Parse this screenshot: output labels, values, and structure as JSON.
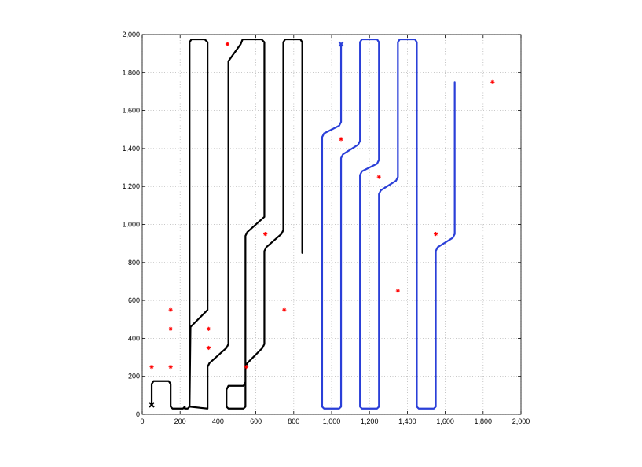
{
  "chart_data": {
    "type": "line",
    "title": "",
    "xlabel": "",
    "ylabel": "",
    "xlim": [
      0,
      2000
    ],
    "ylim": [
      0,
      2000
    ],
    "grid": true,
    "x_ticks": [
      0,
      200,
      400,
      600,
      800,
      1000,
      1200,
      1400,
      1600,
      1800,
      2000
    ],
    "y_ticks": [
      0,
      200,
      400,
      600,
      800,
      1000,
      1200,
      1400,
      1600,
      1800,
      2000
    ],
    "x_tick_labels": [
      "0",
      "200",
      "400",
      "600",
      "800",
      "1,000",
      "1,200",
      "1,400",
      "1,600",
      "1,800",
      "2,000"
    ],
    "y_tick_labels": [
      "0",
      "200",
      "400",
      "600",
      "800",
      "1,000",
      "1,200",
      "1,400",
      "1,600",
      "1,800",
      "2,000"
    ],
    "colors": {
      "black_path": "#000000",
      "blue_path": "#2a3fd8",
      "targets": "#ff0000"
    },
    "series": [
      {
        "color": "black",
        "start_marker": [
          50,
          50
        ],
        "points": [
          [
            50,
            50
          ],
          [
            50,
            160
          ],
          [
            60,
            175
          ],
          [
            140,
            175
          ],
          [
            150,
            160
          ],
          [
            150,
            40
          ],
          [
            160,
            30
          ],
          [
            215,
            30
          ],
          [
            225,
            40
          ],
          [
            225,
            40
          ],
          [
            225,
            30
          ],
          [
            240,
            30
          ],
          [
            250,
            40
          ],
          [
            250,
            1960
          ],
          [
            260,
            1975
          ],
          [
            330,
            1975
          ],
          [
            345,
            1960
          ],
          [
            345,
            550
          ],
          [
            255,
            460
          ],
          [
            250,
            40
          ],
          [
            250,
            40
          ],
          [
            345,
            30
          ],
          [
            345,
            250
          ],
          [
            355,
            270
          ],
          [
            445,
            350
          ],
          [
            455,
            370
          ],
          [
            455,
            1860
          ],
          [
            520,
            1950
          ],
          [
            530,
            1975
          ],
          [
            630,
            1975
          ],
          [
            645,
            1960
          ],
          [
            645,
            1040
          ],
          [
            555,
            960
          ],
          [
            545,
            940
          ],
          [
            545,
            170
          ],
          [
            535,
            150
          ],
          [
            455,
            150
          ],
          [
            445,
            130
          ],
          [
            445,
            40
          ],
          [
            455,
            30
          ],
          [
            535,
            30
          ],
          [
            545,
            40
          ],
          [
            545,
            250
          ],
          [
            555,
            270
          ],
          [
            635,
            350
          ],
          [
            645,
            370
          ],
          [
            645,
            860
          ],
          [
            655,
            880
          ],
          [
            735,
            950
          ],
          [
            745,
            970
          ],
          [
            745,
            1960
          ],
          [
            755,
            1975
          ],
          [
            835,
            1975
          ],
          [
            845,
            1960
          ],
          [
            845,
            850
          ]
        ]
      },
      {
        "color": "blue",
        "end_marker": [
          1050,
          1950
        ],
        "points": [
          [
            1050,
            1950
          ],
          [
            1050,
            1540
          ],
          [
            1040,
            1520
          ],
          [
            960,
            1480
          ],
          [
            950,
            1460
          ],
          [
            950,
            40
          ],
          [
            960,
            30
          ],
          [
            1040,
            30
          ],
          [
            1050,
            40
          ],
          [
            1050,
            1350
          ],
          [
            1060,
            1370
          ],
          [
            1140,
            1420
          ],
          [
            1150,
            1440
          ],
          [
            1150,
            1960
          ],
          [
            1160,
            1975
          ],
          [
            1240,
            1975
          ],
          [
            1250,
            1960
          ],
          [
            1250,
            1340
          ],
          [
            1240,
            1320
          ],
          [
            1160,
            1280
          ],
          [
            1150,
            1260
          ],
          [
            1150,
            40
          ],
          [
            1160,
            30
          ],
          [
            1240,
            30
          ],
          [
            1250,
            40
          ],
          [
            1250,
            1160
          ],
          [
            1260,
            1180
          ],
          [
            1340,
            1230
          ],
          [
            1350,
            1250
          ],
          [
            1350,
            1960
          ],
          [
            1360,
            1975
          ],
          [
            1440,
            1975
          ],
          [
            1450,
            1960
          ],
          [
            1450,
            40
          ],
          [
            1460,
            30
          ],
          [
            1540,
            30
          ],
          [
            1550,
            40
          ],
          [
            1550,
            860
          ],
          [
            1560,
            880
          ],
          [
            1640,
            930
          ],
          [
            1650,
            950
          ],
          [
            1650,
            1750
          ]
        ]
      }
    ],
    "targets": [
      [
        50,
        250
      ],
      [
        150,
        250
      ],
      [
        150,
        450
      ],
      [
        150,
        550
      ],
      [
        350,
        350
      ],
      [
        350,
        450
      ],
      [
        450,
        1950
      ],
      [
        550,
        250
      ],
      [
        650,
        950
      ],
      [
        750,
        550
      ],
      [
        1050,
        1450
      ],
      [
        1250,
        1250
      ],
      [
        1350,
        650
      ],
      [
        1550,
        950
      ],
      [
        1850,
        1750
      ]
    ]
  }
}
